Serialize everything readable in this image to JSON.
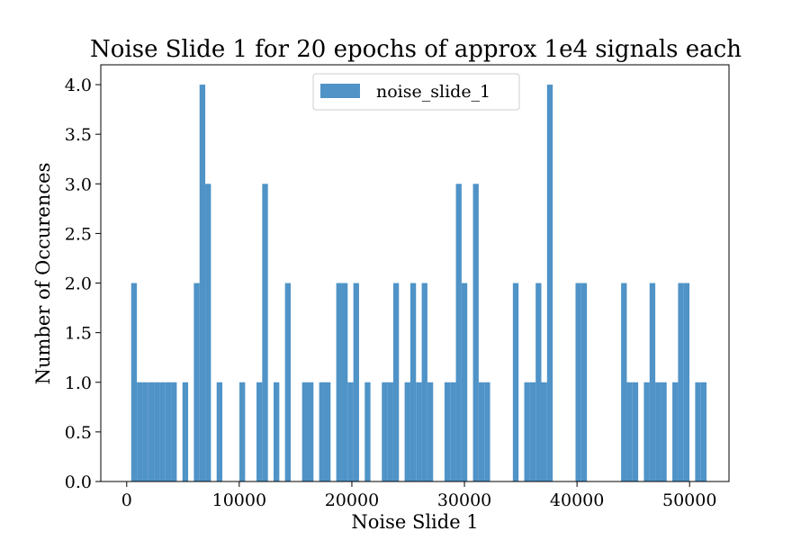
{
  "chart_data": {
    "type": "bar",
    "title": "Noise Slide 1 for 20 epochs of approx 1e4 signals each",
    "xlabel": "Noise Slide 1",
    "ylabel": "Number of Occurences",
    "xlim": [
      -2300,
      53500
    ],
    "ylim": [
      0,
      4.2
    ],
    "xticks": [
      0,
      10000,
      20000,
      30000,
      40000,
      50000
    ],
    "yticks": [
      0.0,
      0.5,
      1.0,
      1.5,
      2.0,
      2.5,
      3.0,
      3.5,
      4.0
    ],
    "xtick_labels": [
      "0",
      "10000",
      "20000",
      "30000",
      "40000",
      "50000"
    ],
    "ytick_labels": [
      "0.0",
      "0.5",
      "1.0",
      "1.5",
      "2.0",
      "2.5",
      "3.0",
      "3.5",
      "4.0"
    ],
    "bin_start": 400,
    "bin_width": 506,
    "values": [
      2,
      1,
      1,
      1,
      1,
      1,
      1,
      1,
      0,
      1,
      0,
      2,
      4,
      3,
      0,
      1,
      0,
      0,
      0,
      1,
      0,
      0,
      1,
      3,
      0,
      1,
      0,
      2,
      0,
      0,
      1,
      1,
      0,
      1,
      1,
      0,
      2,
      2,
      1,
      2,
      0,
      1,
      0,
      0,
      1,
      1,
      2,
      0,
      1,
      2,
      1,
      2,
      1,
      0,
      0,
      1,
      1,
      3,
      2,
      0,
      3,
      1,
      1,
      0,
      0,
      0,
      0,
      2,
      0,
      1,
      1,
      2,
      1,
      4,
      0,
      0,
      0,
      0,
      2,
      2,
      0,
      0,
      0,
      0,
      0,
      0,
      2,
      1,
      1,
      0,
      1,
      2,
      1,
      1,
      0,
      1,
      2,
      2,
      0,
      1,
      1
    ],
    "series": [
      {
        "name": "noise_slide_1",
        "color": "#4f93c7"
      }
    ],
    "legend_position": "upper-center",
    "grid": false
  }
}
